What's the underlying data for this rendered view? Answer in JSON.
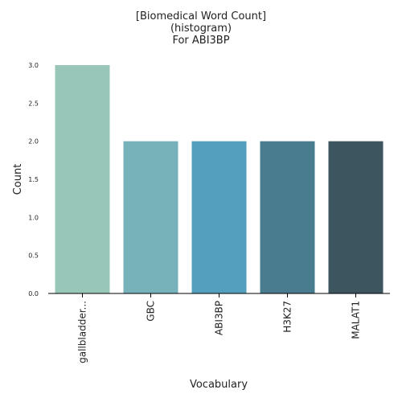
{
  "title_lines": [
    "[Biomedical Word Count]",
    "(histogram)",
    "For ABI3BP"
  ],
  "chart_data": {
    "type": "bar",
    "title": "[Biomedical Word Count]\n(histogram)\nFor ABI3BP",
    "xlabel": "Vocabulary",
    "ylabel": "Count",
    "categories": [
      "gallbladder...",
      "GBC",
      "ABI3BP",
      "H3K27",
      "MALAT1"
    ],
    "values": [
      3,
      2,
      2,
      2,
      2
    ],
    "colors": [
      "#98c6b9",
      "#77b2bb",
      "#539fbd",
      "#4a7c8f",
      "#3c555f"
    ],
    "ylim": [
      0,
      3
    ],
    "yticks": [
      "0.0",
      "0.5",
      "1.0",
      "1.5",
      "2.0",
      "2.5",
      "3.0"
    ],
    "grid": false,
    "legend": "none"
  }
}
